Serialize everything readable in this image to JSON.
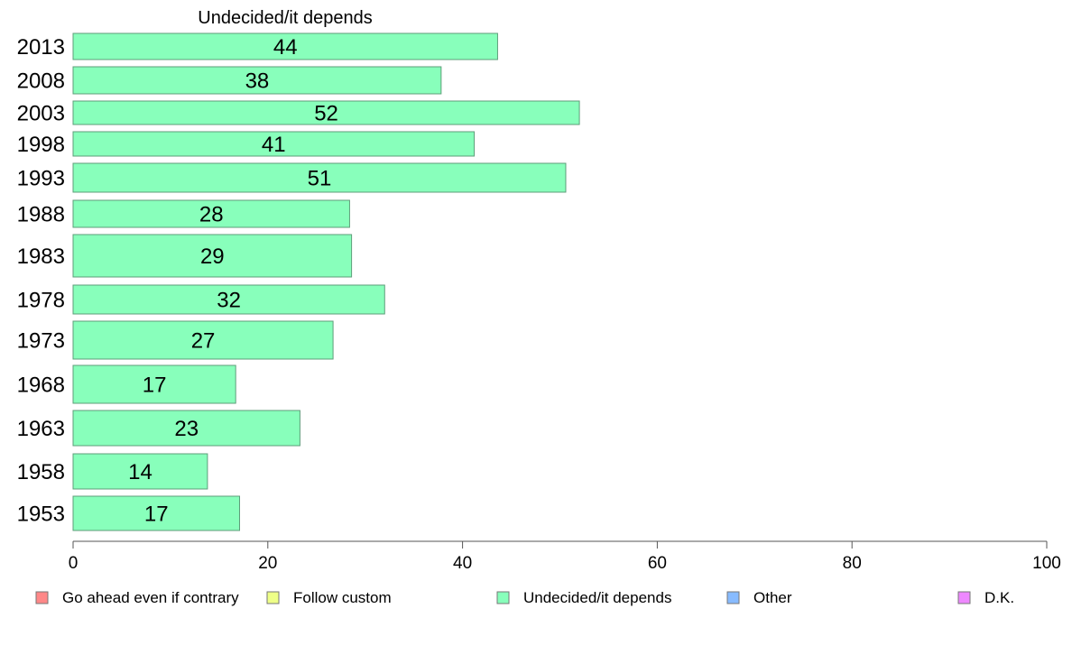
{
  "chart_data": {
    "type": "bar",
    "orientation": "horizontal",
    "title": "Undecided/it depends",
    "xlabel": "",
    "ylabel": "",
    "xlim": [
      0,
      100
    ],
    "x_ticks": [
      0,
      20,
      40,
      60,
      80,
      100
    ],
    "grid": false,
    "categories": [
      "2013",
      "2008",
      "2003",
      "1998",
      "1993",
      "1988",
      "1983",
      "1978",
      "1973",
      "1968",
      "1963",
      "1958",
      "1953"
    ],
    "series": [
      {
        "name": "Undecided/it depends",
        "color": "#88ffbb",
        "values": [
          43.6,
          37.8,
          52,
          41.2,
          50.6,
          28.4,
          28.6,
          32,
          26.7,
          16.7,
          23.3,
          13.8,
          17.1
        ],
        "labels": [
          "44",
          "38",
          "52",
          "41",
          "51",
          "28",
          "29",
          "32",
          "27",
          "17",
          "23",
          "14",
          "17"
        ]
      }
    ],
    "legend": {
      "placement": "bottom",
      "items": [
        {
          "label": "Go ahead even if contrary",
          "color": "#ff8888"
        },
        {
          "label": "Follow custom",
          "color": "#eeff88"
        },
        {
          "label": "Undecided/it depends",
          "color": "#88ffbb"
        },
        {
          "label": "Other",
          "color": "#88bbff"
        },
        {
          "label": "D.K.",
          "color": "#ee88ff"
        }
      ]
    }
  }
}
